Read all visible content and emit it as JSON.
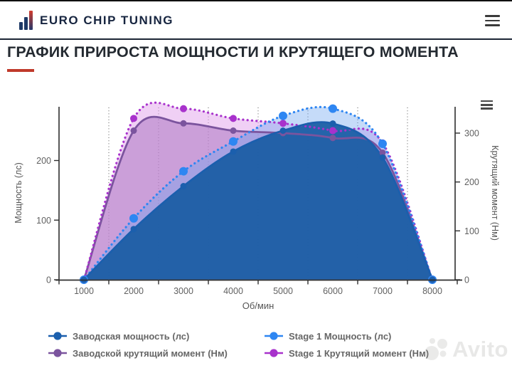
{
  "header": {
    "brand": "EURO CHIP TUNING"
  },
  "title": {
    "text": "ГРАФИК ПРИРОСТА МОЩНОСТИ И КРУТЯЩЕГО МОМЕНТА",
    "accent_color": "#c0392b"
  },
  "chart_data": {
    "type": "area",
    "x": [
      1000,
      2000,
      3000,
      4000,
      5000,
      6000,
      7000,
      8000
    ],
    "xlabel": "Об/мин",
    "axes": {
      "left": {
        "label": "Мощность (лс)",
        "ticks": [
          0,
          100,
          200
        ],
        "range": [
          0,
          290
        ]
      },
      "right": {
        "label": "Крутящий момент (Нм)",
        "ticks": [
          0,
          100,
          200,
          300
        ],
        "range": [
          0,
          354
        ]
      }
    },
    "grid": {
      "vertical_dotted_at": [
        1500,
        2500,
        3500,
        4500,
        5500,
        6500,
        7500
      ]
    },
    "series": [
      {
        "name": "Заводская мощность (лс)",
        "axis": "left",
        "line": "solid",
        "color": "#1b5fad",
        "fill": "rgba(25,92,164,0.93)",
        "marker_radius": 4.5,
        "values": [
          0,
          85,
          157,
          215,
          250,
          262,
          205,
          0
        ]
      },
      {
        "name": "Заводской крутящий момент (Нм)",
        "axis": "right",
        "line": "solid",
        "color": "#7b549e",
        "fill": "rgba(165,110,190,0.5)",
        "marker_radius": 4.5,
        "values": [
          0,
          305,
          320,
          305,
          300,
          290,
          260,
          0
        ]
      },
      {
        "name": "Stage 1 Мощность (лс)",
        "axis": "left",
        "line": "dotted",
        "color": "#2e86f2",
        "fill": "rgba(110,165,240,0.4)",
        "marker_radius": 6,
        "values": [
          0,
          103,
          182,
          232,
          275,
          287,
          228,
          0
        ]
      },
      {
        "name": "Stage 1 Крутящий момент (Нм)",
        "axis": "right",
        "line": "dotted",
        "color": "#a832cc",
        "fill": "rgba(225,162,235,0.5)",
        "marker_radius": 5,
        "values": [
          0,
          330,
          350,
          330,
          320,
          305,
          280,
          0
        ]
      }
    ],
    "legend_position": "bottom",
    "legend_columns": [
      [
        0,
        1
      ],
      [
        2,
        3
      ]
    ]
  },
  "watermark": {
    "text": "Avito"
  }
}
